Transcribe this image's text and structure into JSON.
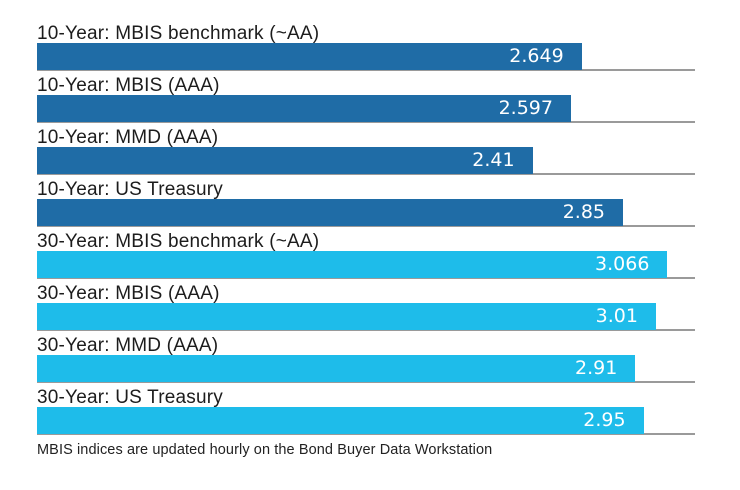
{
  "chart_data": {
    "type": "bar",
    "orientation": "horizontal",
    "title": "",
    "xlabel": "",
    "ylabel": "",
    "xlim": [
      0,
      3.2
    ],
    "grid": "per-bar gray baseline under each bar spanning full axis width",
    "legend": "none",
    "categories": [
      "10-Year: MBIS benchmark (~AA)",
      "10-Year: MBIS (AAA)",
      "10-Year: MMD (AAA)",
      "10-Year: US Treasury",
      "30-Year: MBIS benchmark (~AA)",
      "30-Year: MBIS (AAA)",
      "30-Year: MMD (AAA)",
      "30-Year: US Treasury"
    ],
    "values": [
      2.649,
      2.597,
      2.41,
      2.85,
      3.066,
      3.01,
      2.91,
      2.95
    ],
    "value_labels": [
      "2.649",
      "2.597",
      "2.41",
      "2.85",
      "3.066",
      "3.01",
      "2.91",
      "2.95"
    ],
    "bar_colors": [
      "#1F6CA6",
      "#1F6CA6",
      "#1F6CA6",
      "#1F6CA6",
      "#1EBCEA",
      "#1EBCEA",
      "#1EBCEA",
      "#1EBCEA"
    ],
    "series_colors": {
      "ten_year": "#1F6CA6",
      "thirty_year": "#1EBCEA"
    },
    "baseline_color": "#9a9a9a",
    "value_label_color": "#ffffff",
    "category_label_color": "#1c1c1c"
  },
  "footer": {
    "note": "MBIS indices are updated hourly on the Bond Buyer Data Workstation"
  }
}
